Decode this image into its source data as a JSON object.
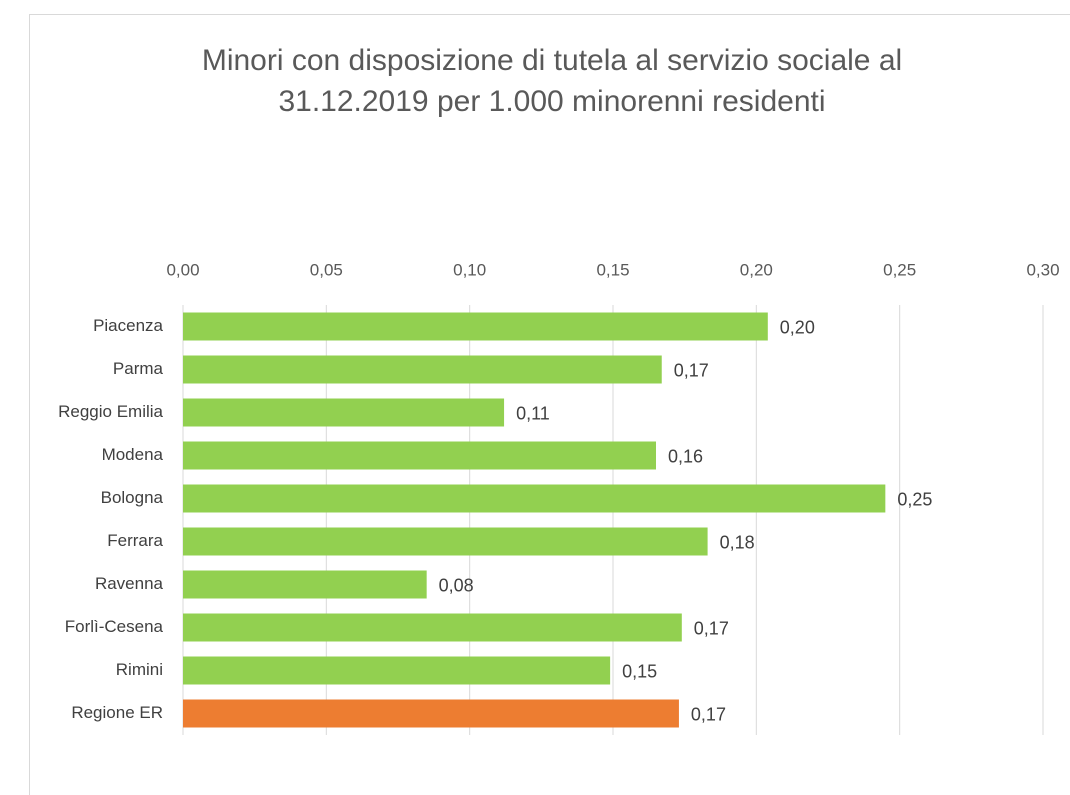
{
  "chart_data": {
    "type": "bar",
    "orientation": "horizontal",
    "title": [
      "Minori con disposizione di tutela al servizio sociale al",
      "31.12.2019 per 1.000 minorenni residenti"
    ],
    "categories": [
      "Piacenza",
      "Parma",
      "Reggio Emilia",
      "Modena",
      "Bologna",
      "Ferrara",
      "Ravenna",
      "Forlì-Cesena",
      "Rimini",
      "Regione ER"
    ],
    "values": [
      0.204,
      0.167,
      0.112,
      0.165,
      0.245,
      0.183,
      0.085,
      0.174,
      0.149,
      0.173
    ],
    "value_labels": [
      "0,20",
      "0,17",
      "0,11",
      "0,16",
      "0,25",
      "0,18",
      "0,08",
      "0,17",
      "0,15",
      "0,17"
    ],
    "colors": [
      "#92d050",
      "#92d050",
      "#92d050",
      "#92d050",
      "#92d050",
      "#92d050",
      "#92d050",
      "#92d050",
      "#92d050",
      "#ed7d31"
    ],
    "xlim": [
      0,
      0.3
    ],
    "xticks": [
      {
        "value": 0,
        "label": "0,00"
      },
      {
        "value": 0.05,
        "label": "0,05"
      },
      {
        "value": 0.1,
        "label": "0,10"
      },
      {
        "value": 0.15,
        "label": "0,15"
      },
      {
        "value": 0.2,
        "label": "0,20"
      },
      {
        "value": 0.25,
        "label": "0,25"
      },
      {
        "value": 0.3,
        "label": "0,30"
      }
    ],
    "grid": true
  }
}
